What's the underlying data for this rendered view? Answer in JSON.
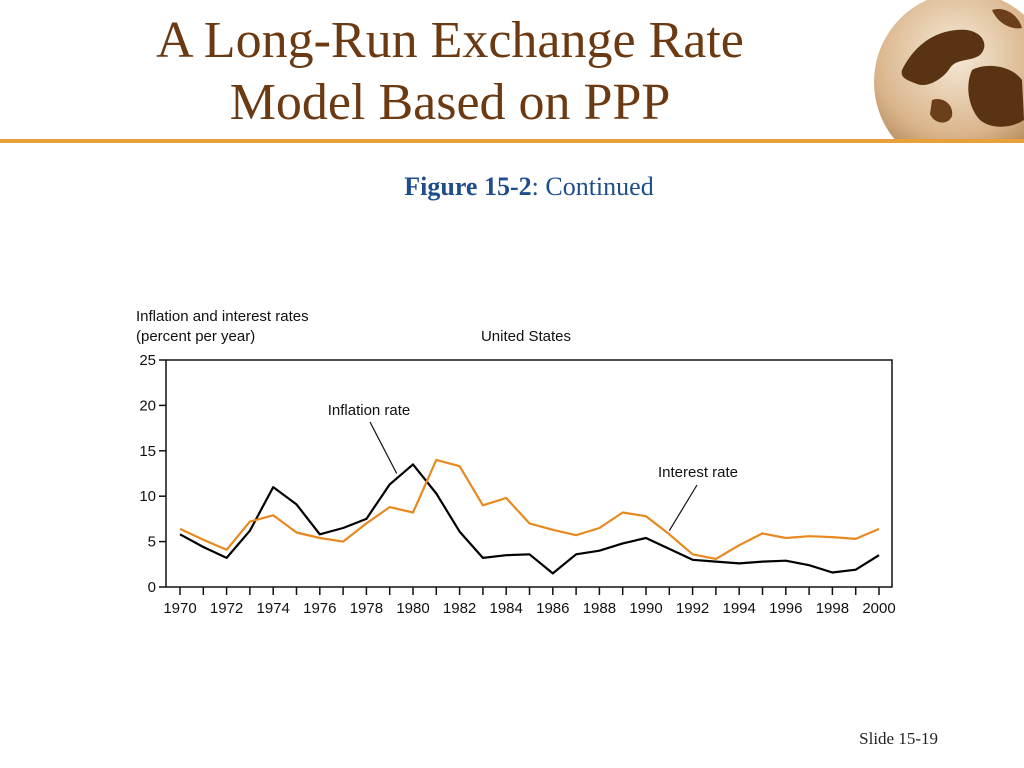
{
  "slide": {
    "title_line1": "A Long-Run Exchange Rate",
    "title_line2": "Model Based on PPP",
    "figure_label": "Figure 15-2",
    "figure_suffix": ": Continued",
    "footer": "Slide 15-19"
  },
  "colors": {
    "title": "#6b3a12",
    "rule": "#e8a13a",
    "subtitle": "#1f4e8c",
    "inflation": "#000000",
    "interest": "#e8891f"
  },
  "chart_data": {
    "type": "line",
    "title": "United States",
    "ylabel_line1": "Inflation and interest rates",
    "ylabel_line2": "(percent per year)",
    "ylim": [
      0,
      25
    ],
    "yticks": [
      0,
      5,
      10,
      15,
      20,
      25
    ],
    "xlim": [
      1970,
      2000
    ],
    "xticks": [
      1970,
      1972,
      1974,
      1976,
      1978,
      1980,
      1982,
      1984,
      1986,
      1988,
      1990,
      1992,
      1994,
      1996,
      1998,
      2000
    ],
    "grid": false,
    "x": [
      1970,
      1971,
      1972,
      1973,
      1974,
      1975,
      1976,
      1977,
      1978,
      1979,
      1980,
      1981,
      1982,
      1983,
      1984,
      1985,
      1986,
      1987,
      1988,
      1989,
      1990,
      1991,
      1992,
      1993,
      1994,
      1995,
      1996,
      1997,
      1998,
      1999,
      2000
    ],
    "series": [
      {
        "name": "Inflation rate",
        "values": [
          5.8,
          4.4,
          3.2,
          6.2,
          11.0,
          9.1,
          5.8,
          6.5,
          7.5,
          11.3,
          13.5,
          10.3,
          6.1,
          3.2,
          3.5,
          3.6,
          1.5,
          3.6,
          4.0,
          4.8,
          5.4,
          4.2,
          3.0,
          2.8,
          2.6,
          2.8,
          2.9,
          2.4,
          1.6,
          1.9,
          3.5
        ]
      },
      {
        "name": "Interest rate",
        "values": [
          6.4,
          5.2,
          4.1,
          7.2,
          7.9,
          6.0,
          5.4,
          5.0,
          7.0,
          8.8,
          8.2,
          14.0,
          13.3,
          9.0,
          9.8,
          7.0,
          6.3,
          5.7,
          6.5,
          8.2,
          7.8,
          5.8,
          3.6,
          3.1,
          4.6,
          5.9,
          5.4,
          5.6,
          5.5,
          5.3,
          6.4
        ]
      }
    ]
  }
}
